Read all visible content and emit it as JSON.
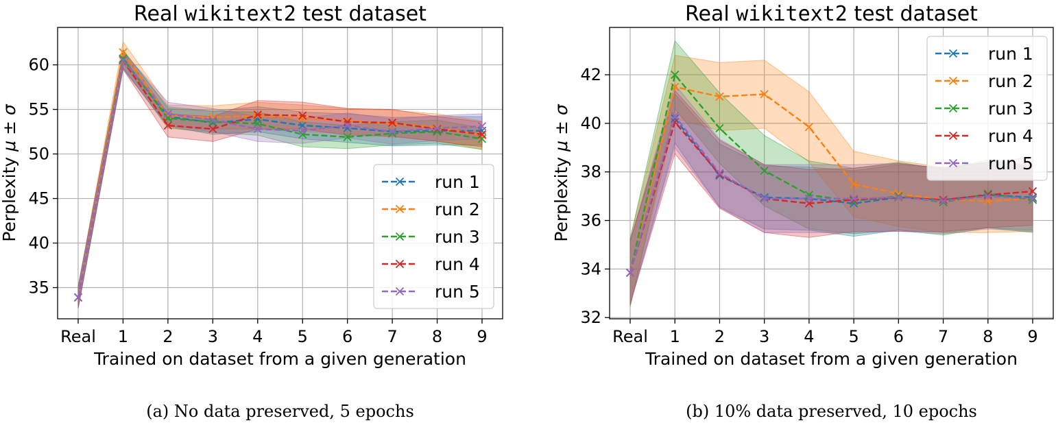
{
  "colors": {
    "run 1": "#1f77b4",
    "run 2": "#ff7f0e",
    "run 3": "#2ca02c",
    "run 4": "#d62728",
    "run 5": "#9467bd"
  },
  "chart_data": [
    {
      "type": "line",
      "title_prefix": "Real ",
      "title_mono": "wikitext2",
      "title_suffix": " test dataset",
      "xlabel": "Trained on dataset from a given generation",
      "ylabel_text": "Perplexity ",
      "ylabel_math": "μ ± σ",
      "caption": "(a) No data preserved, 5 epochs",
      "categories": [
        "Real",
        "1",
        "2",
        "3",
        "4",
        "5",
        "6",
        "7",
        "8",
        "9"
      ],
      "yticks": [
        35,
        40,
        45,
        50,
        55,
        60
      ],
      "ylim": [
        31.5,
        64.2
      ],
      "legend_loc": "lower-right",
      "series": [
        {
          "name": "run 1",
          "values": [
            33.9,
            60.6,
            54.2,
            53.5,
            53.9,
            53.2,
            52.9,
            52.5,
            52.6,
            52.6
          ],
          "std": [
            1.2,
            1.0,
            1.1,
            1.3,
            1.4,
            1.5,
            1.6,
            1.6,
            1.6,
            1.6
          ]
        },
        {
          "name": "run 2",
          "values": [
            33.9,
            61.4,
            54.3,
            54.1,
            54.3,
            54.0,
            53.7,
            53.4,
            53.0,
            52.1
          ],
          "std": [
            1.2,
            1.2,
            1.2,
            1.3,
            1.5,
            1.5,
            1.4,
            1.5,
            1.5,
            1.6
          ]
        },
        {
          "name": "run 3",
          "values": [
            33.9,
            60.7,
            54.0,
            53.6,
            53.4,
            52.2,
            51.9,
            52.3,
            52.5,
            51.7
          ],
          "std": [
            1.2,
            1.0,
            1.1,
            1.2,
            1.3,
            1.4,
            1.3,
            1.3,
            1.3,
            1.2
          ]
        },
        {
          "name": "run 4",
          "values": [
            33.9,
            60.5,
            53.2,
            52.8,
            54.4,
            54.3,
            53.6,
            53.5,
            52.8,
            52.2
          ],
          "std": [
            1.2,
            1.0,
            1.3,
            1.4,
            1.6,
            1.5,
            1.5,
            1.5,
            1.4,
            1.4
          ]
        },
        {
          "name": "run 5",
          "values": [
            33.9,
            60.5,
            54.5,
            53.8,
            52.8,
            52.6,
            53.2,
            52.5,
            52.9,
            53.1
          ],
          "std": [
            1.2,
            1.0,
            1.3,
            1.3,
            1.4,
            1.4,
            1.4,
            1.4,
            1.4,
            1.4
          ]
        }
      ]
    },
    {
      "type": "line",
      "title_prefix": "Real ",
      "title_mono": "wikitext2",
      "title_suffix": " test dataset",
      "xlabel": "Trained on dataset from a given generation",
      "ylabel_text": "Perplexity ",
      "ylabel_math": "μ ± σ",
      "caption": "(b) 10% data preserved, 10 epochs",
      "categories": [
        "Real",
        "1",
        "2",
        "3",
        "4",
        "5",
        "6",
        "7",
        "8",
        "9"
      ],
      "yticks": [
        32,
        34,
        36,
        38,
        40,
        42
      ],
      "ylim": [
        31.95,
        43.95
      ],
      "legend_loc": "upper-right",
      "series": [
        {
          "name": "run 1",
          "values": [
            33.85,
            40.2,
            37.85,
            36.95,
            36.9,
            36.7,
            36.95,
            36.85,
            37.05,
            36.95
          ],
          "std": [
            1.3,
            1.0,
            1.3,
            1.3,
            1.3,
            1.35,
            1.35,
            1.35,
            1.35,
            1.35
          ]
        },
        {
          "name": "run 2",
          "values": [
            33.85,
            41.5,
            41.1,
            41.2,
            39.85,
            37.5,
            37.1,
            36.85,
            36.8,
            36.9
          ],
          "std": [
            1.4,
            1.3,
            1.4,
            1.4,
            1.45,
            1.35,
            1.35,
            1.35,
            1.3,
            1.35
          ]
        },
        {
          "name": "run 3",
          "values": [
            33.85,
            42.0,
            39.8,
            38.05,
            37.05,
            36.8,
            37.0,
            36.75,
            37.1,
            36.85
          ],
          "std": [
            1.4,
            1.4,
            1.45,
            1.45,
            1.4,
            1.35,
            1.4,
            1.35,
            1.4,
            1.35
          ]
        },
        {
          "name": "run 4",
          "values": [
            33.85,
            40.05,
            37.9,
            36.9,
            36.7,
            36.85,
            36.95,
            36.85,
            37.05,
            37.2
          ],
          "std": [
            1.3,
            1.3,
            1.4,
            1.4,
            1.4,
            1.3,
            1.4,
            1.3,
            1.35,
            1.4
          ]
        },
        {
          "name": "run 5",
          "values": [
            33.85,
            40.3,
            37.95,
            36.9,
            36.9,
            36.9,
            36.95,
            36.8,
            37.0,
            36.9
          ],
          "std": [
            1.3,
            1.3,
            1.4,
            1.4,
            1.4,
            1.4,
            1.4,
            1.35,
            1.35,
            1.35
          ]
        }
      ]
    }
  ]
}
